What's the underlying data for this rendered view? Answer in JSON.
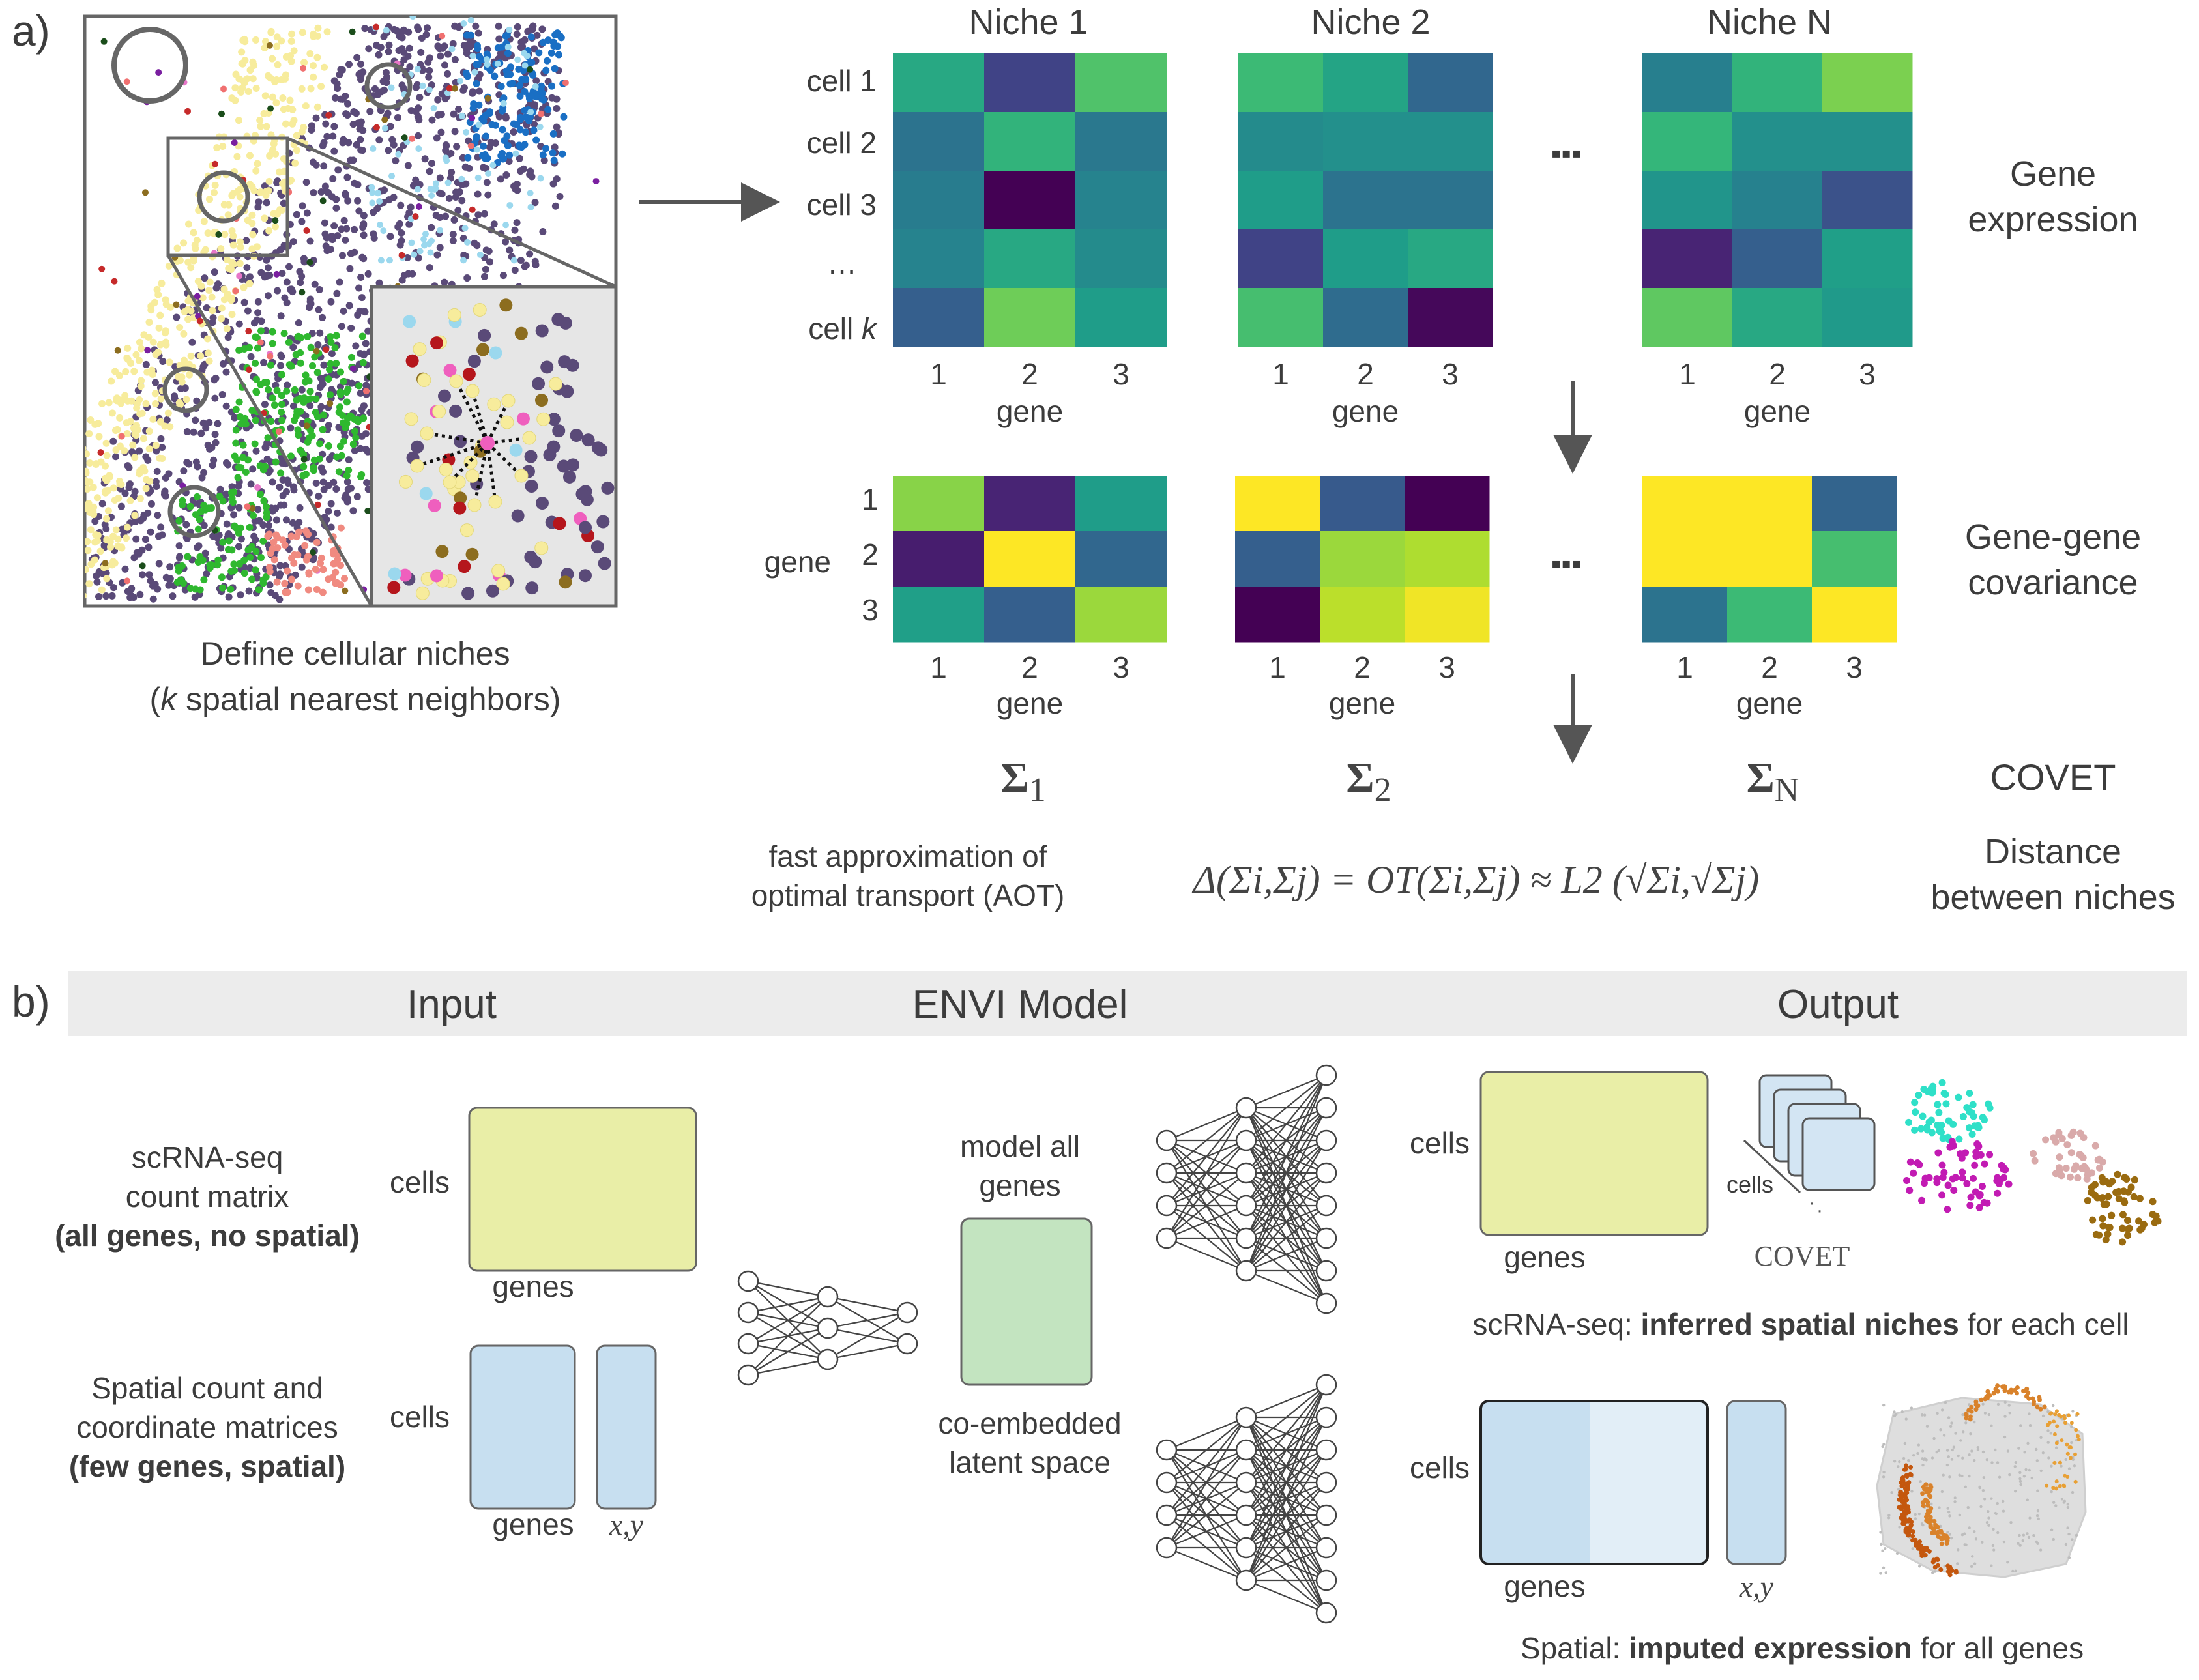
{
  "panel_a": {
    "label": "a)",
    "niche_caption_1": "Define cellular niches",
    "niche_caption_2_italic": "k",
    "niche_caption_2_rest": " spatial nearest neighbors)",
    "niche_caption_2_open": "(",
    "niche_titles": [
      "Niche 1",
      "Niche 2",
      "Niche N"
    ],
    "cell_labels": [
      "cell 1",
      "cell 2",
      "cell 3",
      "…",
      "cell"
    ],
    "cell_k": "k",
    "gene_ticks": [
      "1",
      "2",
      "3"
    ],
    "gene_axis": "gene",
    "ellipsis": "▪▪▪",
    "row_label_1": "Gene",
    "row_label_1b": "expression",
    "row_label_2": "Gene-gene",
    "row_label_2b": "covariance",
    "cov_gene_label": "gene",
    "sigma_labels": [
      "Σ",
      "Σ",
      "Σ"
    ],
    "sigma_subs": [
      "1",
      "2",
      "N"
    ],
    "covet": "COVET",
    "aot_1": "fast approximation of",
    "aot_2": "optimal transport (AOT)",
    "formula": "Δ(Σi,Σj) = OT(Σi,Σj) ≈ L2 (√Σi,√Σj)",
    "distance_1": "Distance",
    "distance_2": "between niches"
  },
  "panel_b": {
    "label": "b)",
    "header_input": "Input",
    "header_model": "ENVI Model",
    "header_output": "Output",
    "scrna_1": "scRNA-seq",
    "scrna_2": "count matrix",
    "scrna_3": "(all genes, no spatial)",
    "spatial_1": "Spatial count and",
    "spatial_2": "coordinate matrices",
    "spatial_3": "(few genes, spatial)",
    "cells": "cells",
    "genes": "genes",
    "xy": "x,y",
    "model_1": "model all",
    "model_2": "genes",
    "latent_1": "co-embedded",
    "latent_2": "latent space",
    "covet": "COVET",
    "out_cells_small": "cells",
    "out_scrna_pre": "scRNA-seq: ",
    "out_scrna_bold": "inferred spatial niches",
    "out_scrna_post": " for each cell",
    "out_spatial_pre": "Spatial: ",
    "out_spatial_bold": "imputed expression",
    "out_spatial_post": " for all genes"
  },
  "colors": {
    "viridis_low": "#440154",
    "viridis_high": "#fde725",
    "yellow_matrix": "#e9eea7",
    "blue_matrix": "#c7dff0",
    "green_latent": "#c3e4c0",
    "header_band": "#ececec"
  }
}
